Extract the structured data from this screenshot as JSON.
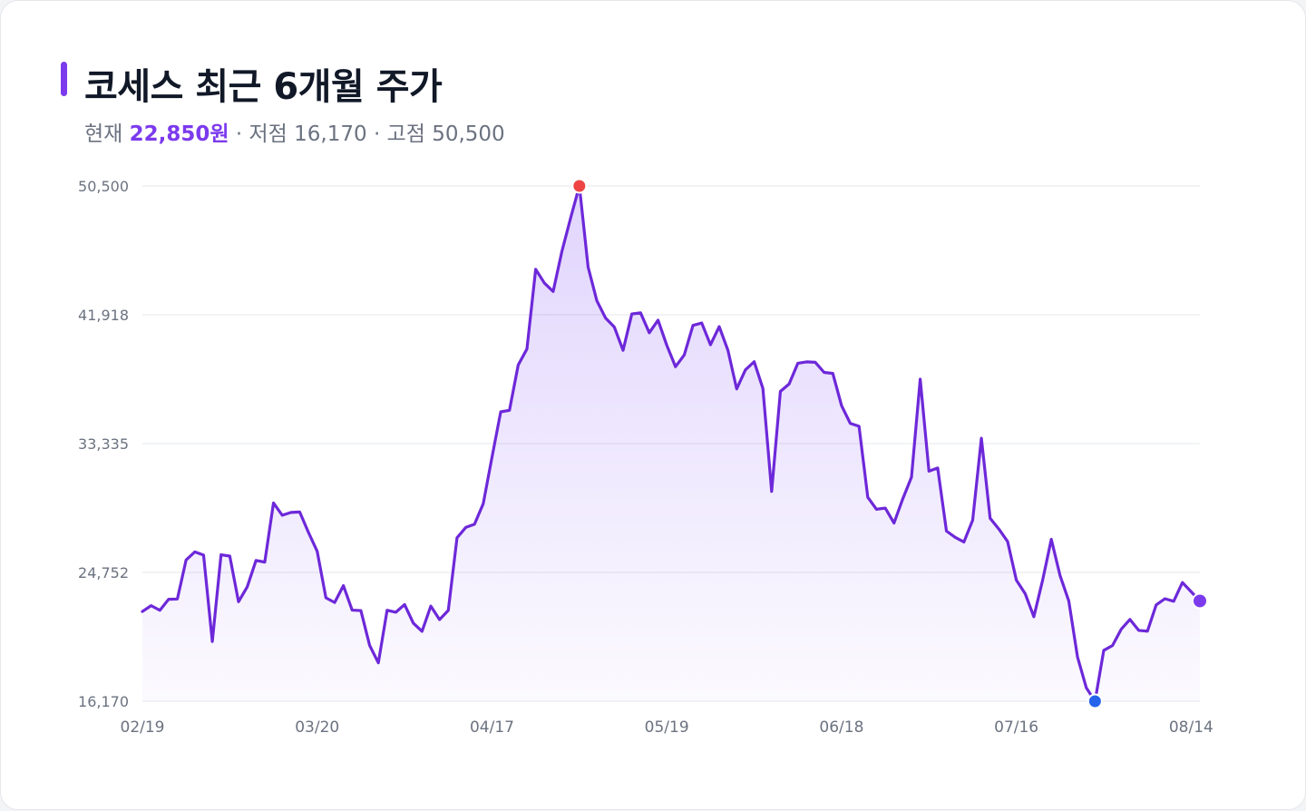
{
  "header": {
    "title": "코세스 최근 6개월 주가",
    "current_label": "현재",
    "current_value": "22,850원",
    "low_label": "· 저점",
    "low_value": "16,170",
    "high_label": "· 고점",
    "high_value": "50,500"
  },
  "colors": {
    "line": "#6d28d9",
    "high_marker": "#ef4444",
    "low_marker": "#2563eb",
    "last_marker": "#7c3aed",
    "grid": "#e5e7eb"
  },
  "chart_data": {
    "type": "area",
    "title": "코세스 최근 6개월 주가",
    "xlabel": "",
    "ylabel": "",
    "ylim": [
      16170,
      50500
    ],
    "yticks": [
      16170,
      24752,
      33335,
      41918,
      50500
    ],
    "ytick_labels": [
      "16,170",
      "24,752",
      "33,335",
      "41,918",
      "50,500"
    ],
    "xtick_labels": [
      "02/19",
      "03/20",
      "04/17",
      "05/19",
      "06/18",
      "07/16",
      "08/14"
    ],
    "xtick_indices": [
      0,
      20,
      40,
      60,
      80,
      100,
      120
    ],
    "grid": true,
    "legend": "none",
    "series": [
      {
        "name": "",
        "values": [
          22150,
          22540,
          22230,
          22960,
          22980,
          25580,
          26120,
          25910,
          20150,
          25930,
          25840,
          22800,
          23800,
          25550,
          25440,
          29380,
          28560,
          28750,
          28780,
          27420,
          26160,
          23060,
          22750,
          23870,
          22240,
          22210,
          19890,
          18730,
          22230,
          22100,
          22610,
          21370,
          20830,
          22510,
          21610,
          22220,
          27060,
          27750,
          27960,
          29330,
          32420,
          35450,
          35550,
          38570,
          39640,
          44950,
          44030,
          43470,
          46140,
          48370,
          50500,
          45100,
          42850,
          41700,
          41100,
          39550,
          41970,
          42050,
          40720,
          41560,
          39890,
          38460,
          39240,
          41210,
          41370,
          39920,
          41130,
          39550,
          36980,
          38250,
          38790,
          37010,
          30150,
          36810,
          37310,
          38690,
          38780,
          38750,
          38080,
          38010,
          35860,
          34680,
          34490,
          29760,
          28960,
          29040,
          28040,
          29650,
          31100,
          37630,
          31500,
          31710,
          27510,
          27090,
          26780,
          28230,
          33690,
          28360,
          27640,
          26810,
          24240,
          23350,
          21800,
          24220,
          26960,
          24540,
          22850,
          19110,
          17070,
          16170,
          19560,
          19880,
          20970,
          21620,
          20890,
          20840,
          22590,
          23000,
          22830,
          24080,
          23470,
          22850
        ]
      }
    ],
    "annotations": [
      {
        "name": "high",
        "index": 50,
        "value": 50500
      },
      {
        "name": "low",
        "index": 109,
        "value": 16170
      },
      {
        "name": "last",
        "index": 121,
        "value": 22850
      }
    ]
  }
}
